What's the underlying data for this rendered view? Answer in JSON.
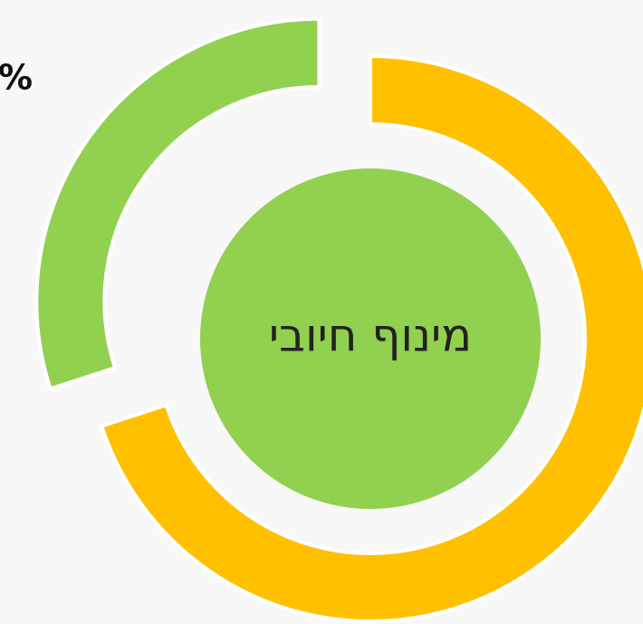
{
  "chart_data": {
    "type": "donut",
    "center_label": "מינוף חיובי",
    "annotations": [
      "%"
    ],
    "categories": [
      null,
      null
    ],
    "values": [
      70,
      30
    ],
    "colors": [
      "#FFC000",
      "#92D050"
    ],
    "center_color": "#92D050"
  }
}
